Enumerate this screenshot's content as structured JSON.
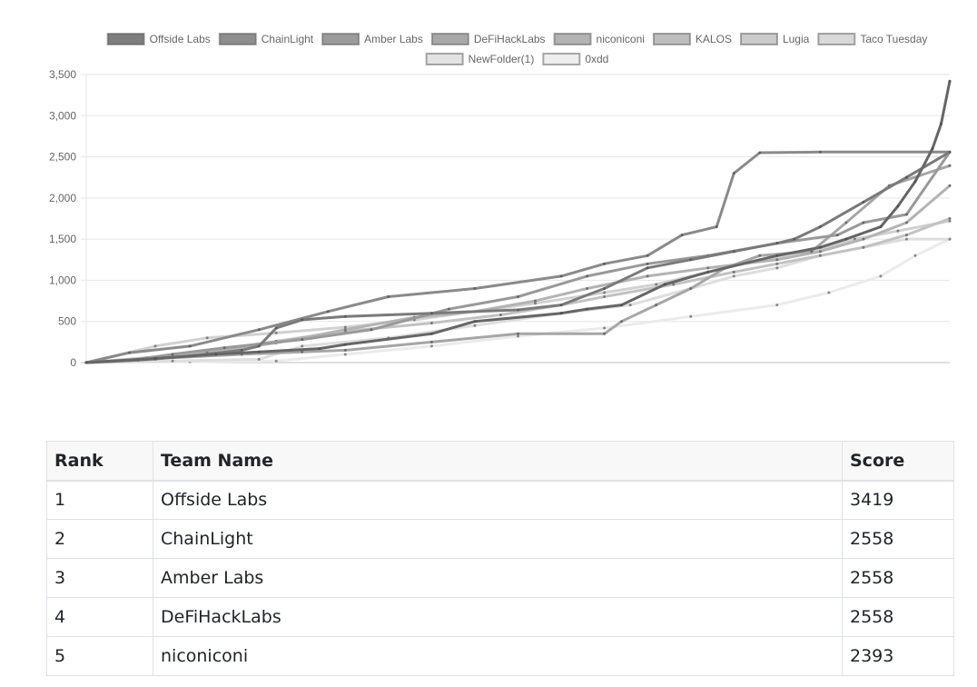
{
  "chart_data": {
    "type": "line",
    "title": "",
    "xlabel": "",
    "ylabel": "",
    "x_range": [
      0,
      100
    ],
    "ylim": [
      0,
      3500
    ],
    "yticks": [
      "0",
      "500",
      "1,000",
      "1,500",
      "2,000",
      "2,500",
      "3,000",
      "3,500"
    ],
    "grid": true,
    "legend_position": "top",
    "series": [
      {
        "name": "Offside Labs",
        "color": "#666666",
        "points": [
          [
            0,
            0
          ],
          [
            8,
            50
          ],
          [
            15,
            100
          ],
          [
            20,
            130
          ],
          [
            27,
            170
          ],
          [
            30,
            220
          ],
          [
            40,
            350
          ],
          [
            45,
            500
          ],
          [
            55,
            600
          ],
          [
            58,
            650
          ],
          [
            62,
            700
          ],
          [
            67,
            950
          ],
          [
            72,
            1100
          ],
          [
            80,
            1300
          ],
          [
            85,
            1400
          ],
          [
            88,
            1500
          ],
          [
            92,
            1650
          ],
          [
            94,
            1900
          ],
          [
            96,
            2200
          ],
          [
            98,
            2600
          ],
          [
            99,
            2900
          ],
          [
            100,
            3419
          ]
        ]
      },
      {
        "name": "ChainLight",
        "color": "#7a7a7a",
        "points": [
          [
            0,
            0
          ],
          [
            6,
            30
          ],
          [
            12,
            80
          ],
          [
            18,
            150
          ],
          [
            20,
            200
          ],
          [
            22,
            420
          ],
          [
            25,
            520
          ],
          [
            30,
            560
          ],
          [
            40,
            600
          ],
          [
            50,
            640
          ],
          [
            55,
            700
          ],
          [
            60,
            900
          ],
          [
            65,
            1150
          ],
          [
            70,
            1250
          ],
          [
            75,
            1350
          ],
          [
            80,
            1450
          ],
          [
            82,
            1500
          ],
          [
            85,
            1650
          ],
          [
            90,
            1950
          ],
          [
            95,
            2250
          ],
          [
            100,
            2558
          ]
        ]
      },
      {
        "name": "Amber Labs",
        "color": "#8a8a8a",
        "points": [
          [
            0,
            0
          ],
          [
            5,
            120
          ],
          [
            12,
            200
          ],
          [
            20,
            400
          ],
          [
            28,
            620
          ],
          [
            35,
            800
          ],
          [
            45,
            900
          ],
          [
            55,
            1050
          ],
          [
            60,
            1200
          ],
          [
            65,
            1300
          ],
          [
            69,
            1550
          ],
          [
            73,
            1650
          ],
          [
            75,
            2300
          ],
          [
            78,
            2550
          ],
          [
            85,
            2558
          ],
          [
            100,
            2558
          ]
        ]
      },
      {
        "name": "DeFiHackLabs",
        "color": "#999999",
        "points": [
          [
            0,
            0
          ],
          [
            6,
            40
          ],
          [
            10,
            100
          ],
          [
            16,
            180
          ],
          [
            25,
            280
          ],
          [
            33,
            400
          ],
          [
            42,
            650
          ],
          [
            50,
            800
          ],
          [
            58,
            1050
          ],
          [
            65,
            1200
          ],
          [
            72,
            1300
          ],
          [
            80,
            1450
          ],
          [
            87,
            1550
          ],
          [
            90,
            1700
          ],
          [
            95,
            1800
          ],
          [
            100,
            2558
          ]
        ]
      },
      {
        "name": "niconiconi",
        "color": "#a6a6a6",
        "points": [
          [
            0,
            0
          ],
          [
            5,
            30
          ],
          [
            10,
            60
          ],
          [
            18,
            100
          ],
          [
            25,
            130
          ],
          [
            30,
            150
          ],
          [
            40,
            250
          ],
          [
            50,
            350
          ],
          [
            60,
            350
          ],
          [
            62,
            500
          ],
          [
            66,
            700
          ],
          [
            70,
            900
          ],
          [
            74,
            1150
          ],
          [
            78,
            1300
          ],
          [
            84,
            1350
          ],
          [
            88,
            1700
          ],
          [
            93,
            2150
          ],
          [
            100,
            2393
          ]
        ]
      },
      {
        "name": "KALOS",
        "color": "#b3b3b3",
        "points": [
          [
            0,
            0
          ],
          [
            8,
            40
          ],
          [
            14,
            120
          ],
          [
            22,
            240
          ],
          [
            30,
            400
          ],
          [
            38,
            550
          ],
          [
            45,
            620
          ],
          [
            52,
            750
          ],
          [
            58,
            900
          ],
          [
            65,
            1050
          ],
          [
            72,
            1150
          ],
          [
            80,
            1250
          ],
          [
            85,
            1350
          ],
          [
            90,
            1500
          ],
          [
            95,
            1700
          ],
          [
            100,
            2150
          ]
        ]
      },
      {
        "name": "Lugia",
        "color": "#c2c2c2",
        "points": [
          [
            0,
            0
          ],
          [
            7,
            60
          ],
          [
            15,
            150
          ],
          [
            22,
            260
          ],
          [
            30,
            380
          ],
          [
            40,
            480
          ],
          [
            48,
            580
          ],
          [
            55,
            700
          ],
          [
            60,
            800
          ],
          [
            68,
            950
          ],
          [
            75,
            1100
          ],
          [
            80,
            1200
          ],
          [
            85,
            1300
          ],
          [
            90,
            1400
          ],
          [
            95,
            1550
          ],
          [
            100,
            1750
          ]
        ]
      },
      {
        "name": "Taco Tuesday",
        "color": "#d1d1d1",
        "points": [
          [
            0,
            0
          ],
          [
            8,
            200
          ],
          [
            14,
            300
          ],
          [
            22,
            360
          ],
          [
            30,
            430
          ],
          [
            38,
            520
          ],
          [
            45,
            620
          ],
          [
            52,
            720
          ],
          [
            60,
            850
          ],
          [
            66,
            950
          ],
          [
            72,
            1100
          ],
          [
            78,
            1250
          ],
          [
            84,
            1350
          ],
          [
            89,
            1500
          ],
          [
            94,
            1600
          ],
          [
            100,
            1720
          ]
        ]
      },
      {
        "name": "NewFolder(1)",
        "color": "#dedede",
        "points": [
          [
            0,
            0
          ],
          [
            10,
            20
          ],
          [
            20,
            40
          ],
          [
            25,
            200
          ],
          [
            35,
            300
          ],
          [
            45,
            450
          ],
          [
            55,
            600
          ],
          [
            63,
            700
          ],
          [
            70,
            900
          ],
          [
            75,
            1050
          ],
          [
            80,
            1150
          ],
          [
            85,
            1300
          ],
          [
            90,
            1400
          ],
          [
            95,
            1500
          ],
          [
            100,
            1500
          ]
        ]
      },
      {
        "name": "0xdd",
        "color": "#ebebeb",
        "points": [
          [
            0,
            0
          ],
          [
            12,
            10
          ],
          [
            22,
            20
          ],
          [
            30,
            100
          ],
          [
            40,
            200
          ],
          [
            50,
            320
          ],
          [
            60,
            420
          ],
          [
            70,
            560
          ],
          [
            80,
            700
          ],
          [
            86,
            850
          ],
          [
            92,
            1050
          ],
          [
            96,
            1300
          ],
          [
            100,
            1500
          ]
        ]
      }
    ]
  },
  "table": {
    "headers": {
      "rank": "Rank",
      "team": "Team Name",
      "score": "Score"
    },
    "rows": [
      {
        "rank": "1",
        "team": "Offside Labs",
        "score": "3419"
      },
      {
        "rank": "2",
        "team": "ChainLight",
        "score": "2558"
      },
      {
        "rank": "3",
        "team": "Amber Labs",
        "score": "2558"
      },
      {
        "rank": "4",
        "team": "DeFiHackLabs",
        "score": "2558"
      },
      {
        "rank": "5",
        "team": "niconiconi",
        "score": "2393"
      }
    ]
  }
}
